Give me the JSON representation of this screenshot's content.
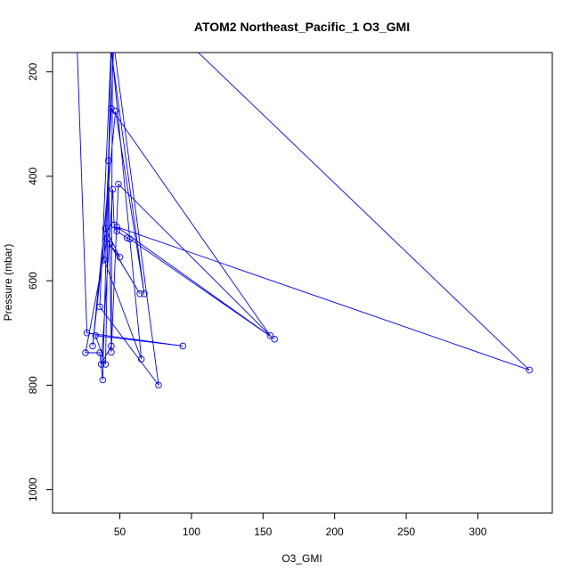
{
  "chart_data": {
    "type": "line",
    "title": "ATOM2 Northeast_Pacific_1 O3_GMI",
    "xlabel": "O3_GMI",
    "ylabel": "Pressure (mbar)",
    "xlim": [
      3,
      352
    ],
    "ylim": [
      1045,
      163
    ],
    "y_reversed": true,
    "grid": false,
    "legend": "none",
    "color": "#0000ff",
    "x_ticks": [
      50,
      100,
      150,
      200,
      250,
      300
    ],
    "y_ticks": [
      200,
      400,
      600,
      800,
      1000
    ],
    "series": [
      {
        "points": [
          [
            20,
            140
          ],
          [
            27,
            700
          ],
          [
            94,
            725
          ],
          [
            33,
            705
          ],
          [
            40,
            760
          ],
          [
            44,
            110
          ],
          [
            77,
            800
          ],
          [
            36,
            650
          ],
          [
            44,
            150
          ],
          [
            65,
            750
          ],
          [
            39,
            560
          ],
          [
            46,
            135
          ],
          [
            42,
            120
          ],
          [
            67,
            625
          ],
          [
            47,
            275
          ],
          [
            31,
            725
          ],
          [
            40,
            500
          ],
          [
            50,
            555
          ],
          [
            43,
            530
          ],
          [
            64,
            625
          ],
          [
            41,
            520
          ],
          [
            26,
            738
          ],
          [
            36,
            738
          ],
          [
            38,
            790
          ],
          [
            45,
            60
          ],
          [
            44,
            737
          ],
          [
            49,
            415
          ],
          [
            155,
            705
          ],
          [
            44,
            270
          ],
          [
            42,
            370
          ],
          [
            44,
            725
          ],
          [
            37,
            760
          ],
          [
            45,
            425
          ],
          [
            46,
            493
          ],
          [
            48,
            505
          ],
          [
            55,
            518
          ],
          [
            57,
            520
          ],
          [
            158,
            712
          ],
          [
            48,
            497
          ],
          [
            336,
            771
          ],
          [
            58,
            40
          ]
        ]
      }
    ]
  }
}
